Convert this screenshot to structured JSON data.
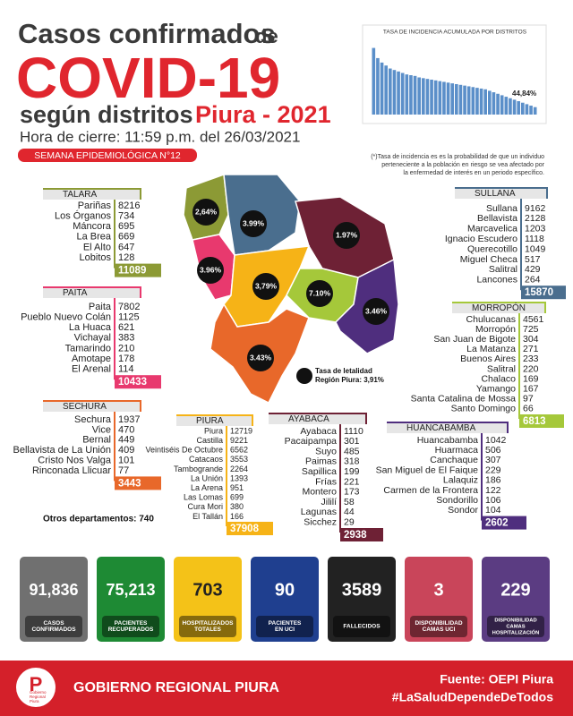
{
  "header": {
    "title_a": "Casos confirmados",
    "title_b": "de",
    "title_c": "COVID-19",
    "title_d": "según distritos",
    "title_e": "Piura - 2021",
    "closing": "Hora de cierre: 11:59 p.m. del 26/03/2021",
    "week": "SEMANA EPIDEMIOLÓGICA N°12"
  },
  "mini_chart": {
    "type": "bar",
    "title": "TASA DE INCIDENCIA ACUMULADA POR DISTRITOS",
    "annotation": "44,84%",
    "color": "#5b8fc9",
    "ylim": [
      0,
      50
    ],
    "values": [
      44.84,
      38,
      35,
      33,
      31,
      30,
      29,
      28,
      27,
      26.5,
      26,
      25,
      24.5,
      24,
      23.5,
      23,
      22.5,
      22,
      21.5,
      21,
      20.5,
      20,
      19.5,
      19,
      18.5,
      18,
      17.5,
      17,
      16,
      15,
      14,
      13,
      12,
      11,
      10,
      9,
      8,
      7,
      6,
      5
    ]
  },
  "note": [
    "(*)Tasa de incidencia es es la probabilidad de que un individuo",
    "perteneciente a la población en riesgo se vea afectado por",
    "la enfermedad de interés en un periodo específico."
  ],
  "provinces": [
    {
      "name": "TALARA",
      "color": "#8c9a35",
      "total": 11089,
      "districts": [
        {
          "name": "Pariñas",
          "value": 8216
        },
        {
          "name": "Los Órganos",
          "value": 734
        },
        {
          "name": "Máncora",
          "value": 695
        },
        {
          "name": "La Brea",
          "value": 669
        },
        {
          "name": "El Alto",
          "value": 647
        },
        {
          "name": "Lobitos",
          "value": 128
        }
      ]
    },
    {
      "name": "PAITA",
      "color": "#e8396e",
      "total": 10433,
      "districts": [
        {
          "name": "Paita",
          "value": 7802
        },
        {
          "name": "Pueblo Nuevo Colán",
          "value": 1125
        },
        {
          "name": "La Huaca",
          "value": 621
        },
        {
          "name": "Vichayal",
          "value": 383
        },
        {
          "name": "Tamarindo",
          "value": 210
        },
        {
          "name": "Amotape",
          "value": 178
        },
        {
          "name": "El Arenal",
          "value": 114
        }
      ]
    },
    {
      "name": "SECHURA",
      "color": "#e8682a",
      "total": 3443,
      "districts": [
        {
          "name": "Sechura",
          "value": 1937
        },
        {
          "name": "Vice",
          "value": 470
        },
        {
          "name": "Bernal",
          "value": 449
        },
        {
          "name": "Bellavista de La Unión",
          "value": 409
        },
        {
          "name": "Cristo Nos Valga",
          "value": 101
        },
        {
          "name": "Rinconada Llicuar",
          "value": 77
        }
      ]
    },
    {
      "name": "PIURA",
      "color": "#f6b317",
      "total": 37908,
      "districts": [
        {
          "name": "Piura",
          "value": 12719
        },
        {
          "name": "Castilla",
          "value": 9221
        },
        {
          "name": "Veintiséis De Octubre",
          "value": 6562
        },
        {
          "name": "Catacaos",
          "value": 3553
        },
        {
          "name": "Tambogrande",
          "value": 2264
        },
        {
          "name": "La Unión",
          "value": 1393
        },
        {
          "name": "La Arena",
          "value": 951
        },
        {
          "name": "Las Lomas",
          "value": 699
        },
        {
          "name": "Cura Mori",
          "value": 380
        },
        {
          "name": "El Tallán",
          "value": 166
        }
      ]
    },
    {
      "name": "AYABACA",
      "color": "#6e2135",
      "total": 2938,
      "districts": [
        {
          "name": "Ayabaca",
          "value": 1110
        },
        {
          "name": "Pacaipampa",
          "value": 301
        },
        {
          "name": "Suyo",
          "value": 485
        },
        {
          "name": "Paimas",
          "value": 318
        },
        {
          "name": "Sapillica",
          "value": 199
        },
        {
          "name": "Frías",
          "value": 221
        },
        {
          "name": "Montero",
          "value": 173
        },
        {
          "name": "Jililí",
          "value": 58
        },
        {
          "name": "Lagunas",
          "value": 44
        },
        {
          "name": "Sicchez",
          "value": 29
        }
      ]
    },
    {
      "name": "HUANCABAMBA",
      "color": "#4f2e7e",
      "total": 2602,
      "districts": [
        {
          "name": "Huancabamba",
          "value": 1042
        },
        {
          "name": "Huarmaca",
          "value": 506
        },
        {
          "name": "Canchaque",
          "value": 307
        },
        {
          "name": "San Miguel de El Faique",
          "value": 229
        },
        {
          "name": "Lalaquiz",
          "value": 186
        },
        {
          "name": "Carmen de la Frontera",
          "value": 122
        },
        {
          "name": "Sondorillo",
          "value": 106
        },
        {
          "name": "Sondor",
          "value": 104
        }
      ]
    },
    {
      "name": "SULLANA",
      "color": "#4a6e8e",
      "total": 15870,
      "districts": [
        {
          "name": "Sullana",
          "value": 9162
        },
        {
          "name": "Bellavista",
          "value": 2128
        },
        {
          "name": "Marcavelica",
          "value": 1203
        },
        {
          "name": "Ignacio Escudero",
          "value": 1118
        },
        {
          "name": "Querecotillo",
          "value": 1049
        },
        {
          "name": "Miguel Checa",
          "value": 517
        },
        {
          "name": "Salitral",
          "value": 429
        },
        {
          "name": "Lancones",
          "value": 264
        }
      ]
    },
    {
      "name": "MORROPÓN",
      "color": "#a5c83a",
      "total": 6813,
      "districts": [
        {
          "name": "Chulucanas",
          "value": 4561
        },
        {
          "name": "Morropón",
          "value": 725
        },
        {
          "name": "San Juan de Bigote",
          "value": 304
        },
        {
          "name": "La Matanza",
          "value": 271
        },
        {
          "name": "Buenos Aires",
          "value": 233
        },
        {
          "name": "Salitral",
          "value": 220
        },
        {
          "name": "Chalaco",
          "value": 169
        },
        {
          "name": "Yamango",
          "value": 167
        },
        {
          "name": "Santa Catalina de Mossa",
          "value": 97
        },
        {
          "name": "Santo Domingo",
          "value": 66
        }
      ]
    }
  ],
  "map_labels": [
    "2,64%",
    "3.99%",
    "1.97%",
    "3.96%",
    "3,79%",
    "7.10%",
    "3.46%",
    "3.43%"
  ],
  "lethality": {
    "title": "Tasa de letalidad",
    "value": "Región Piura: 3,91%"
  },
  "others": "Otros departamentos: 740",
  "stats": [
    {
      "value": "91,836",
      "label": [
        "CASOS",
        "CONFIRMADOS"
      ],
      "color": "#707070"
    },
    {
      "value": "75,213",
      "label": [
        "PACIENTES",
        "RECUPERADOS"
      ],
      "color": "#1e8a34"
    },
    {
      "value": "703",
      "label": [
        "HOSPITALIZADOS",
        "TOTALES"
      ],
      "color": "#f4c218"
    },
    {
      "value": "90",
      "label": [
        "PACIENTES",
        "EN UCI"
      ],
      "color": "#1f3f8f"
    },
    {
      "value": "3589",
      "label": [
        "FALLECIDOS"
      ],
      "color": "#222222"
    },
    {
      "value": "3",
      "label": [
        "DISPONIBILIDAD",
        "CAMAS UCI"
      ],
      "color": "#c9455a"
    },
    {
      "value": "229",
      "label": [
        "DISPONIBILIDAD",
        "CAMAS",
        "HOSPITALIZACIÓN"
      ],
      "color": "#5b3c82"
    }
  ],
  "footer": {
    "logo": [
      "Gobierno",
      "Regional",
      "Piura"
    ],
    "org": "GOBIERNO REGIONAL PIURA",
    "source": "Fuente: OEPI Piura",
    "hashtag": "#LaSaludDependeDeTodos"
  }
}
